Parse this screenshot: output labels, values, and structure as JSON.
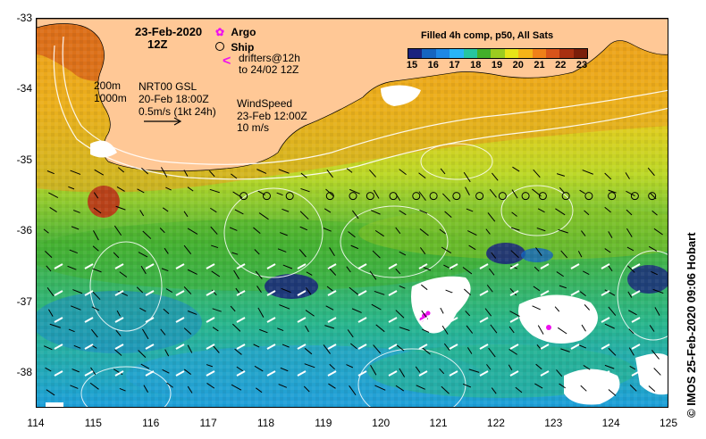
{
  "header": {
    "date": "23-Feb-2020",
    "time": "12Z"
  },
  "legend": {
    "argo": "Argo",
    "ship": "Ship",
    "drifters_line1": "drifters@12h",
    "drifters_line2": "to 24/02 12Z"
  },
  "colorbar": {
    "title": "Filled 4h comp, p50, All Sats",
    "ticks": [
      "15",
      "16",
      "17",
      "18",
      "19",
      "20",
      "21",
      "22",
      "23"
    ],
    "colors": [
      "#1a237e",
      "#1565c0",
      "#1e88e5",
      "#29b6f6",
      "#26c6a0",
      "#43b02a",
      "#9ccc20",
      "#e8e418",
      "#f6b417",
      "#f08018",
      "#d8541a",
      "#a83010",
      "#7a1e0a"
    ]
  },
  "annotations": {
    "isobath_200": "200m",
    "isobath_1000": "1000m",
    "altimetry_line1": "NRT00 GSL",
    "altimetry_line2": "20-Feb 18:00Z",
    "altimetry_line3": "0.5m/s (1kt 24h)",
    "wind_line1": "WindSpeed",
    "wind_line2": "23-Feb 12:00Z",
    "wind_line3": "10 m/s"
  },
  "axes": {
    "y_ticks": [
      "-33",
      "-34",
      "-35",
      "-36",
      "-37",
      "-38"
    ],
    "x_ticks": [
      "114",
      "115",
      "116",
      "117",
      "118",
      "119",
      "120",
      "121",
      "122",
      "123",
      "124",
      "125"
    ]
  },
  "credit": "© IMOS 25-Feb-2020 09:06 Hobart",
  "ship_track": {
    "lat": -35.5,
    "lon": [
      117.6,
      118.0,
      118.4,
      119.1,
      119.5,
      119.8,
      120.2,
      120.6,
      120.9,
      121.3,
      121.7,
      122.1,
      122.5,
      122.8,
      123.2,
      123.6,
      124.0,
      124.4,
      124.7
    ]
  }
}
